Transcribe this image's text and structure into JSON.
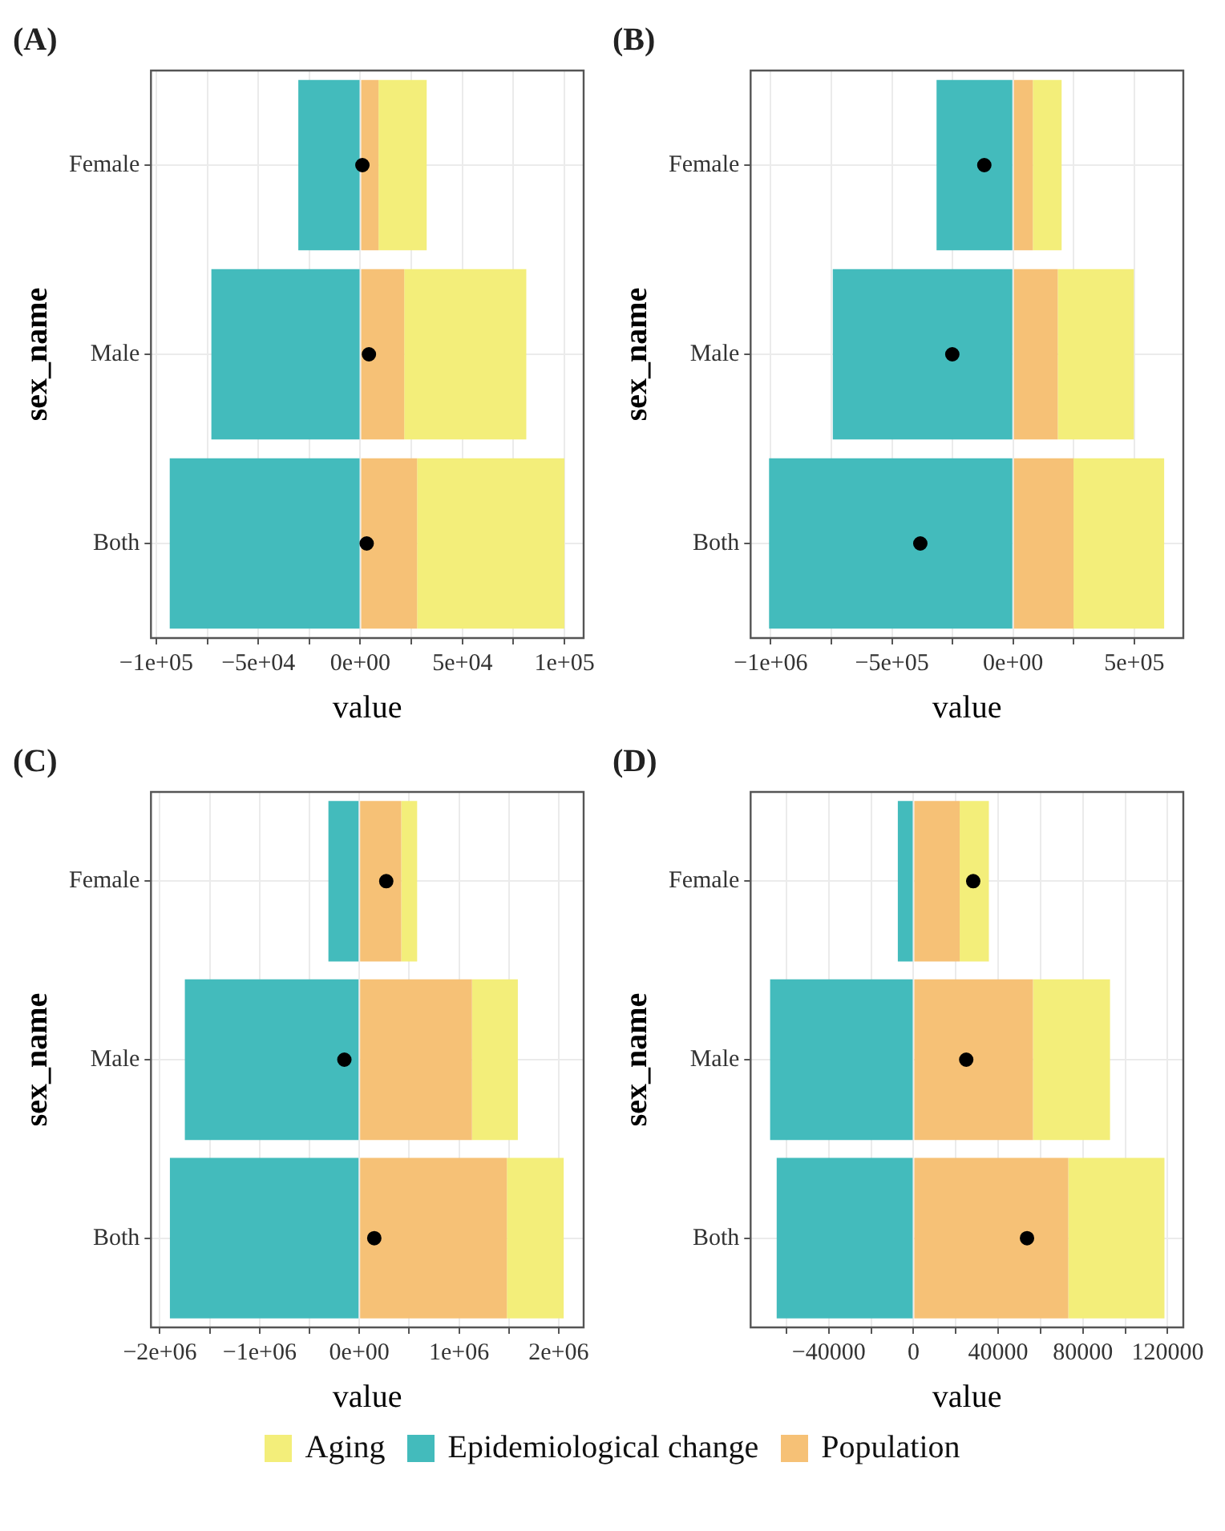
{
  "chart_data": [
    {
      "type": "bar",
      "title": "(A)",
      "orientation": "horizontal",
      "stacked": true,
      "xlabel": "value",
      "ylabel": "sex_name",
      "categories": [
        "Female",
        "Male",
        "Both"
      ],
      "grid": true,
      "marker": "circle",
      "legend": "bottom",
      "xlim": [
        -102600,
        109400
      ],
      "xticks": [
        {
          "value": -100000,
          "label": "−1e+05"
        },
        {
          "value": -75000,
          "label": null
        },
        {
          "value": -50000,
          "label": "−5e+04"
        },
        {
          "value": -25000,
          "label": null
        },
        {
          "value": 0,
          "label": "0e+00"
        },
        {
          "value": 25000,
          "label": null
        },
        {
          "value": 50000,
          "label": "5e+04"
        },
        {
          "value": 75000,
          "label": null
        },
        {
          "value": 100000,
          "label": "1e+05"
        }
      ],
      "series": [
        {
          "name": "Population",
          "color": "#f6c176",
          "values": [
            8900,
            21500,
            27800
          ]
        },
        {
          "name": "Aging",
          "color": "#f3ee7a",
          "values": [
            23600,
            59800,
            72200
          ]
        },
        {
          "name": "Epidemiological change",
          "color": "#43bbbc",
          "values": [
            -30400,
            -73000,
            -93400
          ]
        },
        {
          "type": "scatter",
          "color": "#000000",
          "x": [
            "Female",
            "Male",
            "Both"
          ],
          "values": [
            1000,
            4200,
            3100
          ]
        }
      ]
    },
    {
      "type": "bar",
      "title": "(B)",
      "orientation": "horizontal",
      "stacked": true,
      "xlabel": "value",
      "ylabel": "sex_name",
      "categories": [
        "Female",
        "Male",
        "Both"
      ],
      "grid": true,
      "marker": "circle",
      "xlim": [
        -1083000,
        702000
      ],
      "xticks": [
        {
          "value": -1000000,
          "label": "−1e+06"
        },
        {
          "value": -750000,
          "label": null
        },
        {
          "value": -500000,
          "label": "−5e+05"
        },
        {
          "value": -250000,
          "label": null
        },
        {
          "value": 0,
          "label": "0e+00"
        },
        {
          "value": 250000,
          "label": null
        },
        {
          "value": 500000,
          "label": "5e+05"
        }
      ],
      "series": [
        {
          "color": "#f6c176",
          "values": [
            81000,
            184000,
            249000
          ]
        },
        {
          "color": "#f3ee7a",
          "values": [
            119000,
            314000,
            374000
          ]
        },
        {
          "color": "#43bbbc",
          "values": [
            -316000,
            -744000,
            -1007000
          ]
        },
        {
          "type": "scatter",
          "color": "#000000",
          "x": [
            "Female",
            "Male",
            "Both"
          ],
          "values": [
            -119000,
            -251000,
            -383000
          ]
        }
      ]
    },
    {
      "type": "bar",
      "title": "(C)",
      "orientation": "horizontal",
      "stacked": true,
      "xlabel": "value",
      "ylabel": "sex_name",
      "categories": [
        "Female",
        "Male",
        "Both"
      ],
      "grid": true,
      "marker": "circle",
      "xlim": [
        -2090000,
        2250000
      ],
      "xticks": [
        {
          "value": -2000000,
          "label": "−2e+06"
        },
        {
          "value": -1500000,
          "label": null
        },
        {
          "value": -1000000,
          "label": "−1e+06"
        },
        {
          "value": -500000,
          "label": null
        },
        {
          "value": 0,
          "label": "0e+00"
        },
        {
          "value": 500000,
          "label": null
        },
        {
          "value": 1000000,
          "label": "1e+06"
        },
        {
          "value": 1500000,
          "label": null
        },
        {
          "value": 2000000,
          "label": "2e+06"
        }
      ],
      "series": [
        {
          "color": "#f6c176",
          "values": [
            420000,
            1130000,
            1480000
          ]
        },
        {
          "color": "#f3ee7a",
          "values": [
            160000,
            460000,
            570000
          ]
        },
        {
          "color": "#43bbbc",
          "values": [
            -310000,
            -1750000,
            -1900000
          ]
        },
        {
          "type": "scatter",
          "color": "#000000",
          "x": [
            "Female",
            "Male",
            "Both"
          ],
          "values": [
            270000,
            -150000,
            150000
          ]
        }
      ]
    },
    {
      "type": "bar",
      "title": "(D)",
      "orientation": "horizontal",
      "stacked": true,
      "xlabel": "value",
      "ylabel": "sex_name",
      "categories": [
        "Female",
        "Male",
        "Both"
      ],
      "grid": true,
      "marker": "circle",
      "xlim": [
        -76900,
        127400
      ],
      "xticks": [
        {
          "value": -60000,
          "label": null
        },
        {
          "value": -40000,
          "label": "−40000"
        },
        {
          "value": -20000,
          "label": null
        },
        {
          "value": 0,
          "label": "0"
        },
        {
          "value": 20000,
          "label": null
        },
        {
          "value": 40000,
          "label": "40000"
        },
        {
          "value": 60000,
          "label": null
        },
        {
          "value": 80000,
          "label": "80000"
        },
        {
          "value": 100000,
          "label": null
        },
        {
          "value": 120000,
          "label": "120000"
        }
      ],
      "series": [
        {
          "color": "#f6c176",
          "values": [
            21800,
            56400,
            73100
          ]
        },
        {
          "color": "#f3ee7a",
          "values": [
            13800,
            36400,
            45400
          ]
        },
        {
          "color": "#43bbbc",
          "values": [
            -7400,
            -67700,
            -64600
          ]
        },
        {
          "type": "scatter",
          "color": "#000000",
          "x": [
            "Female",
            "Male",
            "Both"
          ],
          "values": [
            28200,
            24900,
            53600
          ]
        }
      ]
    }
  ]
}
